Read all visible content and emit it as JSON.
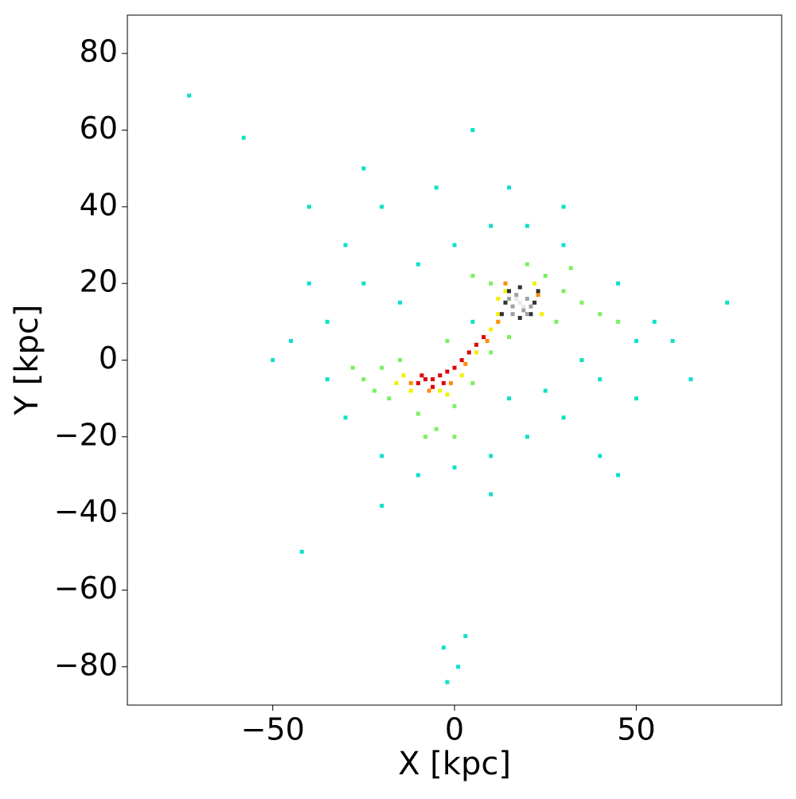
{
  "chart_data": {
    "type": "scatter",
    "xlabel": "X [kpc]",
    "ylabel": "Y [kpc]",
    "xlim": [
      -90,
      90
    ],
    "ylim": [
      -90,
      90
    ],
    "xticks": [
      {
        "value": -50,
        "label": "−50"
      },
      0,
      50
    ],
    "yticks": [
      {
        "value": -80,
        "label": "−80"
      },
      {
        "value": -60,
        "label": "−60"
      },
      {
        "value": -40,
        "label": "−40"
      },
      {
        "value": -20,
        "label": "−20"
      },
      0,
      20,
      40,
      60,
      80
    ],
    "grid": false,
    "series": [
      {
        "color": "#10e0c8",
        "x": [
          -35,
          -30,
          -20,
          -40,
          -25,
          -10,
          0,
          10,
          20,
          30,
          45,
          50,
          55,
          60,
          50,
          40,
          30,
          20,
          10,
          0,
          -10,
          -20,
          -30,
          -35,
          -45,
          -50,
          -15,
          5,
          15,
          25,
          35,
          -5,
          15,
          -25,
          5,
          30,
          -3,
          1,
          -2,
          3,
          -73,
          -58,
          75,
          65,
          -42,
          45,
          -20,
          10,
          40,
          -40
        ],
        "values": [
          10,
          30,
          40,
          20,
          20,
          25,
          30,
          35,
          35,
          30,
          20,
          5,
          10,
          5,
          -10,
          -5,
          -15,
          -20,
          -25,
          -28,
          -30,
          -25,
          -15,
          -5,
          5,
          0,
          15,
          10,
          -10,
          -8,
          0,
          45,
          45,
          50,
          60,
          40,
          -75,
          -80,
          -84,
          -72,
          69,
          58,
          15,
          -5,
          -50,
          -30,
          -38,
          -35,
          -25,
          40
        ]
      },
      {
        "color": "#7cf060",
        "x": [
          -25,
          -20,
          -18,
          -22,
          -10,
          -5,
          0,
          5,
          10,
          15,
          25,
          30,
          35,
          28,
          40,
          20,
          10,
          -28,
          -15,
          0,
          -8,
          45,
          32,
          5,
          -2
        ],
        "values": [
          -5,
          -2,
          -10,
          -8,
          -14,
          -18,
          -12,
          -6,
          2,
          6,
          22,
          18,
          15,
          10,
          12,
          25,
          20,
          -2,
          0,
          -20,
          -20,
          10,
          24,
          22,
          5
        ]
      },
      {
        "color": "#f0f000",
        "x": [
          -14,
          -12,
          -4,
          2,
          6,
          10,
          12,
          14,
          22,
          24,
          12,
          -16,
          -2
        ],
        "values": [
          -4,
          -8,
          -8,
          -4,
          2,
          8,
          12,
          18,
          20,
          12,
          16,
          -6,
          -9
        ]
      },
      {
        "color": "#ff8c00",
        "x": [
          -12,
          -7,
          -1,
          3,
          9,
          12,
          23,
          14
        ],
        "values": [
          -6,
          -8,
          -6,
          -1,
          5,
          10,
          17,
          20
        ]
      },
      {
        "color": "#dd0000",
        "x": [
          -10,
          -8,
          -6,
          -4,
          -2,
          0,
          2,
          4,
          6,
          8,
          -6,
          -3,
          -9
        ],
        "values": [
          -6,
          -5,
          -5,
          -4,
          -3,
          -2,
          0,
          2,
          4,
          6,
          -7,
          -6,
          -4
        ]
      },
      {
        "color": "#303030",
        "x": [
          14,
          22,
          18,
          18,
          13,
          23,
          15,
          21
        ],
        "values": [
          15,
          15,
          19,
          11,
          12,
          18,
          18,
          12
        ]
      },
      {
        "color": "#a0a0a0",
        "x": [
          16,
          20,
          17,
          19,
          15,
          21,
          16,
          20
        ],
        "values": [
          14,
          16,
          17,
          13,
          16,
          14,
          12,
          12
        ]
      },
      {
        "color": "#e8e8e8",
        "x": [
          18,
          17,
          19
        ],
        "values": [
          15,
          16,
          14
        ]
      }
    ]
  }
}
